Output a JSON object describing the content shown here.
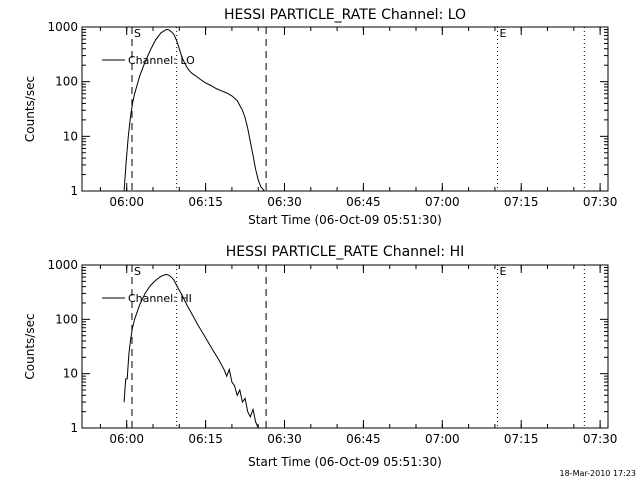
{
  "footer": {
    "timestamp": "18-Mar-2010 17:23"
  },
  "x_ticks": [
    "06:00",
    "06:15",
    "06:30",
    "06:45",
    "07:00",
    "07:15",
    "07:30"
  ],
  "y_ticks": [
    "1",
    "10",
    "100",
    "1000"
  ],
  "chart_data": [
    {
      "type": "line",
      "title": "HESSI PARTICLE_RATE Channel: LO",
      "xlabel": "Start Time (06-Oct-09 05:51:30)",
      "ylabel": "Counts/sec",
      "yscale": "log",
      "ylim": [
        1,
        1000
      ],
      "xlim": [
        "05:51:30",
        "07:31:30"
      ],
      "grid": false,
      "legend": {
        "position": "upper-left",
        "entries": [
          "Channel: LO"
        ]
      },
      "markers": [
        {
          "label": "S",
          "time": "06:01:00",
          "style": "dashed"
        },
        {
          "time": "06:26:30",
          "style": "dashed"
        },
        {
          "time": "06:09:30",
          "style": "dotted"
        },
        {
          "label": "E",
          "time": "07:10:30",
          "style": "dotted"
        },
        {
          "time": "07:27:00",
          "style": "dotted"
        }
      ],
      "series": [
        {
          "name": "Channel: LO",
          "x": [
            "05:59:30",
            "05:59:54",
            "06:00:18",
            "06:00:42",
            "06:01:06",
            "06:01:30",
            "06:02:30",
            "06:03:30",
            "06:04:30",
            "06:05:30",
            "06:06:30",
            "06:07:30",
            "06:08:00",
            "06:08:30",
            "06:09:00",
            "06:09:30",
            "06:10:00",
            "06:10:30",
            "06:11:00",
            "06:11:30",
            "06:12:00",
            "06:12:30",
            "06:13:00",
            "06:14:00",
            "06:15:00",
            "06:16:00",
            "06:17:00",
            "06:18:00",
            "06:19:00",
            "06:20:00",
            "06:21:00",
            "06:22:00",
            "06:22:30",
            "06:23:00",
            "06:23:30",
            "06:24:00",
            "06:24:30",
            "06:25:00",
            "06:25:30",
            "06:26:00",
            "06:26:12"
          ],
          "y": [
            1.0,
            3.5,
            10,
            22,
            40,
            60,
            130,
            230,
            380,
            580,
            780,
            900,
            890,
            820,
            720,
            560,
            400,
            280,
            220,
            180,
            155,
            140,
            130,
            110,
            95,
            85,
            75,
            68,
            62,
            55,
            45,
            30,
            22,
            14,
            8,
            4.5,
            2.5,
            1.6,
            1.2,
            1.05,
            1.0
          ]
        }
      ]
    },
    {
      "type": "line",
      "title": "HESSI PARTICLE_RATE Channel: HI",
      "xlabel": "Start Time (06-Oct-09 05:51:30)",
      "ylabel": "Counts/sec",
      "yscale": "log",
      "ylim": [
        1,
        1000
      ],
      "xlim": [
        "05:51:30",
        "07:31:30"
      ],
      "grid": false,
      "legend": {
        "position": "upper-left",
        "entries": [
          "Channel: HI"
        ]
      },
      "markers": [
        {
          "label": "S",
          "time": "06:01:00",
          "style": "dashed"
        },
        {
          "time": "06:26:30",
          "style": "dashed"
        },
        {
          "time": "06:09:30",
          "style": "dotted"
        },
        {
          "label": "E",
          "time": "07:10:30",
          "style": "dotted"
        },
        {
          "time": "07:27:00",
          "style": "dotted"
        }
      ],
      "series": [
        {
          "name": "Channel: HI",
          "x": [
            "05:59:30",
            "05:59:48",
            "06:00:06",
            "06:00:24",
            "06:00:42",
            "06:01:06",
            "06:01:30",
            "06:02:30",
            "06:03:30",
            "06:04:30",
            "06:05:30",
            "06:06:30",
            "06:07:30",
            "06:08:00",
            "06:08:30",
            "06:09:00",
            "06:09:30",
            "06:10:30",
            "06:11:30",
            "06:12:30",
            "06:13:30",
            "06:14:30",
            "06:15:30",
            "06:16:30",
            "06:17:30",
            "06:18:30",
            "06:19:00",
            "06:19:30",
            "06:20:00",
            "06:20:30",
            "06:21:00",
            "06:21:30",
            "06:22:00",
            "06:22:30",
            "06:23:00",
            "06:23:30",
            "06:24:00",
            "06:24:30",
            "06:25:00"
          ],
          "y": [
            3,
            8,
            8,
            22,
            40,
            70,
            100,
            190,
            300,
            420,
            520,
            620,
            670,
            650,
            600,
            520,
            420,
            280,
            180,
            120,
            80,
            55,
            38,
            26,
            18,
            12,
            9,
            12,
            7,
            6,
            4,
            5,
            3,
            3.5,
            2,
            1.6,
            2.2,
            1.3,
            1.0
          ]
        }
      ]
    }
  ]
}
